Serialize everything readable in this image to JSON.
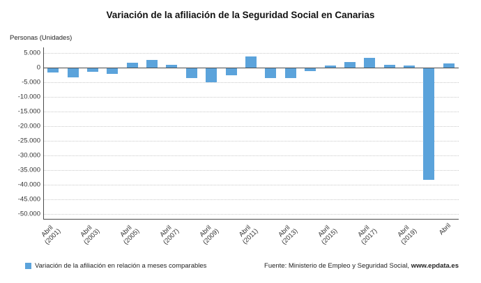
{
  "title": "Variación de la afiliación de la Seguridad Social en Canarias",
  "y_axis_title": "Personas (Unidades)",
  "legend": {
    "label": "Variación de la afiliación en relación a meses comparables"
  },
  "source": {
    "prefix": "Fuente: Ministerio de Empleo y Seguridad Social, ",
    "bold": "www.epdata.es"
  },
  "colors": {
    "bar": "#5ba3db",
    "axis": "#4a4a4a",
    "grid": "#c9c9c9"
  },
  "chart_data": {
    "type": "bar",
    "title": "Variación de la afiliación de la Seguridad Social en Canarias",
    "ylabel": "Personas (Unidades)",
    "xlabel": "",
    "grid": "horizontal-dotted",
    "legend_position": "bottom-left",
    "ylim": [
      -52000,
      7000
    ],
    "categories": [
      "Abril 2001",
      "Abril 2002",
      "Abril 2003",
      "Abril 2004",
      "Abril 2005",
      "Abril 2006",
      "Abril 2007",
      "Abril 2008",
      "Abril 2009",
      "Abril 2010",
      "Abril 2011",
      "Abril 2012",
      "Abril 2013",
      "Abril 2014",
      "Abril 2015",
      "Abril 2016",
      "Abril 2017",
      "Abril 2018",
      "Abril 2019",
      "Abril 2020",
      "Abril 2021"
    ],
    "values": [
      -1600,
      -3300,
      -1400,
      -2100,
      1700,
      2600,
      1000,
      -3500,
      -4900,
      -2600,
      4000,
      -3500,
      -3400,
      -1200,
      700,
      1900,
      3300,
      1000,
      800,
      -38300,
      1400
    ],
    "yticks": [
      {
        "value": 5000,
        "label": "5.000"
      },
      {
        "value": 0,
        "label": "0"
      },
      {
        "value": -5000,
        "label": "-5.000"
      },
      {
        "value": -10000,
        "label": "-10.000"
      },
      {
        "value": -15000,
        "label": "-15.000"
      },
      {
        "value": -20000,
        "label": "-20.000"
      },
      {
        "value": -25000,
        "label": "-25.000"
      },
      {
        "value": -30000,
        "label": "-30.000"
      },
      {
        "value": -35000,
        "label": "-35.000"
      },
      {
        "value": -40000.0,
        "label": "-40.000"
      },
      {
        "value": -45000,
        "label": "-45.000"
      },
      {
        "value": -50000,
        "label": "-50.000"
      }
    ],
    "x_ticks": [
      {
        "index": 0,
        "lines": [
          "Abril",
          "(2001)"
        ]
      },
      {
        "index": 2,
        "lines": [
          "Abril",
          "(2003)"
        ]
      },
      {
        "index": 4,
        "lines": [
          "Abril",
          "(2005)"
        ]
      },
      {
        "index": 6,
        "lines": [
          "Abril",
          "(2007)"
        ]
      },
      {
        "index": 8,
        "lines": [
          "Abril",
          "(2009)"
        ]
      },
      {
        "index": 10,
        "lines": [
          "Abril",
          "(2011)"
        ]
      },
      {
        "index": 12,
        "lines": [
          "Abril",
          "(2013)"
        ]
      },
      {
        "index": 14,
        "lines": [
          "Abril",
          "(2015)"
        ]
      },
      {
        "index": 16,
        "lines": [
          "Abril",
          "(2017)"
        ]
      },
      {
        "index": 18,
        "lines": [
          "Abril",
          "(2019)"
        ]
      },
      {
        "index": 20,
        "lines": [
          "Abril"
        ]
      }
    ]
  }
}
